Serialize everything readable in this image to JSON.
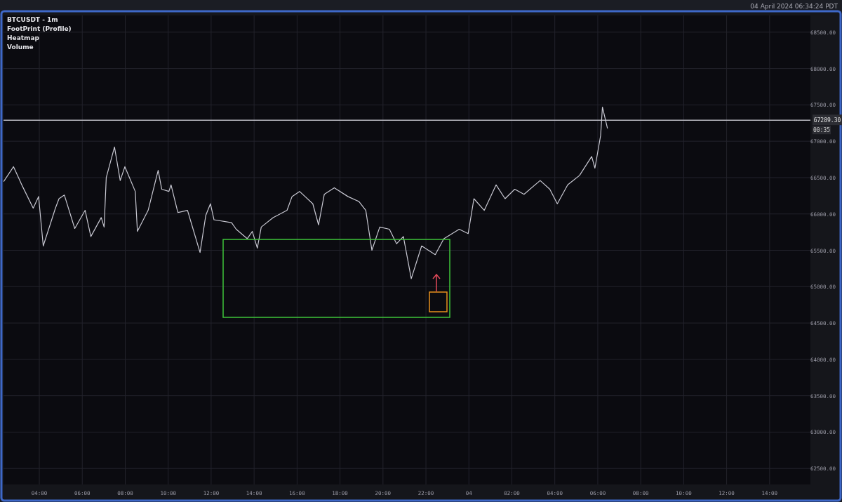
{
  "chart_data": {
    "type": "line",
    "title": "BTCUSDT - 1m",
    "annotations": [
      "FootPrint (Profile)",
      "Heatmap",
      "Volume",
      "04 April 2024 06:34:24 PDT",
      "00:35"
    ],
    "series": [
      {
        "color": "#c9c9d3",
        "x": [
          "2024-04-03T02:21",
          "2024-04-03T02:48",
          "2024-04-03T03:13",
          "2024-04-03T03:43",
          "2024-04-03T03:58",
          "2024-04-03T04:11",
          "2024-04-03T04:45",
          "2024-04-03T04:55",
          "2024-04-03T05:10",
          "2024-04-03T05:39",
          "2024-04-03T06:08",
          "2024-04-03T06:24",
          "2024-04-03T06:53",
          "2024-04-03T07:01",
          "2024-04-03T07:07",
          "2024-04-03T07:30",
          "2024-04-03T07:46",
          "2024-04-03T07:59",
          "2024-04-03T08:28",
          "2024-04-03T08:34",
          "2024-04-03T09:04",
          "2024-04-03T09:32",
          "2024-04-03T09:42",
          "2024-04-03T10:02",
          "2024-04-03T10:08",
          "2024-04-03T10:27",
          "2024-04-03T10:54",
          "2024-04-03T11:06",
          "2024-04-03T11:29",
          "2024-04-03T11:45",
          "2024-04-03T11:58",
          "2024-04-03T12:08",
          "2024-04-03T12:57",
          "2024-04-03T13:10",
          "2024-04-03T13:41",
          "2024-04-03T13:55",
          "2024-04-03T14:09",
          "2024-04-03T14:20",
          "2024-04-03T14:53",
          "2024-04-03T15:32",
          "2024-04-03T15:46",
          "2024-04-03T16:07",
          "2024-04-03T16:44",
          "2024-04-03T17:00",
          "2024-04-03T17:16",
          "2024-04-03T17:44",
          "2024-04-03T18:22",
          "2024-04-03T18:53",
          "2024-04-03T19:12",
          "2024-04-03T19:29",
          "2024-04-03T19:51",
          "2024-04-03T20:18",
          "2024-04-03T20:38",
          "2024-04-03T20:57",
          "2024-04-03T21:19",
          "2024-04-03T21:48",
          "2024-04-03T22:26",
          "2024-04-03T22:50",
          "2024-04-03T23:33",
          "2024-04-03T23:58",
          "2024-04-04T00:14",
          "2024-04-04T00:43",
          "2024-04-04T01:16",
          "2024-04-04T01:41",
          "2024-04-04T02:08",
          "2024-04-04T02:34",
          "2024-04-04T03:19",
          "2024-04-04T03:46",
          "2024-04-04T04:07",
          "2024-04-04T04:36",
          "2024-04-04T05:09",
          "2024-04-04T05:43",
          "2024-04-04T05:52",
          "2024-04-04T06:08",
          "2024-04-04T06:13",
          "2024-04-04T06:27"
        ],
        "values": [
          66450,
          66650,
          66380,
          66080,
          66240,
          65560,
          66080,
          66210,
          66260,
          65800,
          66050,
          65690,
          65950,
          65820,
          66500,
          66920,
          66460,
          66650,
          66310,
          65760,
          66050,
          66600,
          66340,
          66310,
          66400,
          66020,
          66050,
          65850,
          65470,
          65980,
          66140,
          65920,
          65880,
          65790,
          65660,
          65760,
          65530,
          65820,
          65950,
          66050,
          66240,
          66310,
          66140,
          65850,
          66270,
          66360,
          66240,
          66170,
          66050,
          65500,
          65820,
          65790,
          65590,
          65690,
          65110,
          65560,
          65440,
          65660,
          65790,
          65730,
          66210,
          66050,
          66400,
          66210,
          66340,
          66270,
          66460,
          66340,
          66140,
          66400,
          66530,
          66790,
          66630,
          67080,
          67470,
          67180
        ]
      }
    ],
    "xlim": [
      "2024-04-03T02:20",
      "2024-04-04T15:54"
    ],
    "xticks": [
      {
        "value": "2024-04-03T04:00",
        "label": "04:00"
      },
      {
        "value": "2024-04-03T06:00",
        "label": "06:00"
      },
      {
        "value": "2024-04-03T08:00",
        "label": "08:00"
      },
      {
        "value": "2024-04-03T10:00",
        "label": "10:00"
      },
      {
        "value": "2024-04-03T12:00",
        "label": "12:00"
      },
      {
        "value": "2024-04-03T14:00",
        "label": "14:00"
      },
      {
        "value": "2024-04-03T16:00",
        "label": "16:00"
      },
      {
        "value": "2024-04-03T18:00",
        "label": "18:00"
      },
      {
        "value": "2024-04-03T20:00",
        "label": "20:00"
      },
      {
        "value": "2024-04-03T22:00",
        "label": "22:00"
      },
      {
        "value": "2024-04-04T00:00",
        "label": "04"
      },
      {
        "value": "2024-04-04T02:00",
        "label": "02:00"
      },
      {
        "value": "2024-04-04T04:00",
        "label": "04:00"
      },
      {
        "value": "2024-04-04T06:00",
        "label": "06:00"
      },
      {
        "value": "2024-04-04T08:00",
        "label": "08:00"
      },
      {
        "value": "2024-04-04T10:00",
        "label": "10:00"
      },
      {
        "value": "2024-04-04T12:00",
        "label": "12:00"
      },
      {
        "value": "2024-04-04T14:00",
        "label": "14:00"
      }
    ],
    "ylim": [
      62280,
      68730
    ],
    "yticks": [
      {
        "value": 62500,
        "label": "62500.00"
      },
      {
        "value": 63000,
        "label": "63000.00"
      },
      {
        "value": 63500,
        "label": "63500.00"
      },
      {
        "value": 64000,
        "label": "64000.00"
      },
      {
        "value": 64500,
        "label": "64500.00"
      },
      {
        "value": 65000,
        "label": "65000.00"
      },
      {
        "value": 65500,
        "label": "65500.00"
      },
      {
        "value": 66000,
        "label": "66000.00"
      },
      {
        "value": 66500,
        "label": "66500.00"
      },
      {
        "value": 67000,
        "label": "67000.00"
      },
      {
        "value": 67500,
        "label": "67500.00"
      },
      {
        "value": 68000,
        "label": "68000.00"
      },
      {
        "value": 68500,
        "label": "68500.00"
      }
    ],
    "ref_lines": [
      {
        "axis": "y",
        "value": 67289.3,
        "label": "67289.30",
        "color": "#b8b8c0"
      }
    ],
    "grid": true
  }
}
